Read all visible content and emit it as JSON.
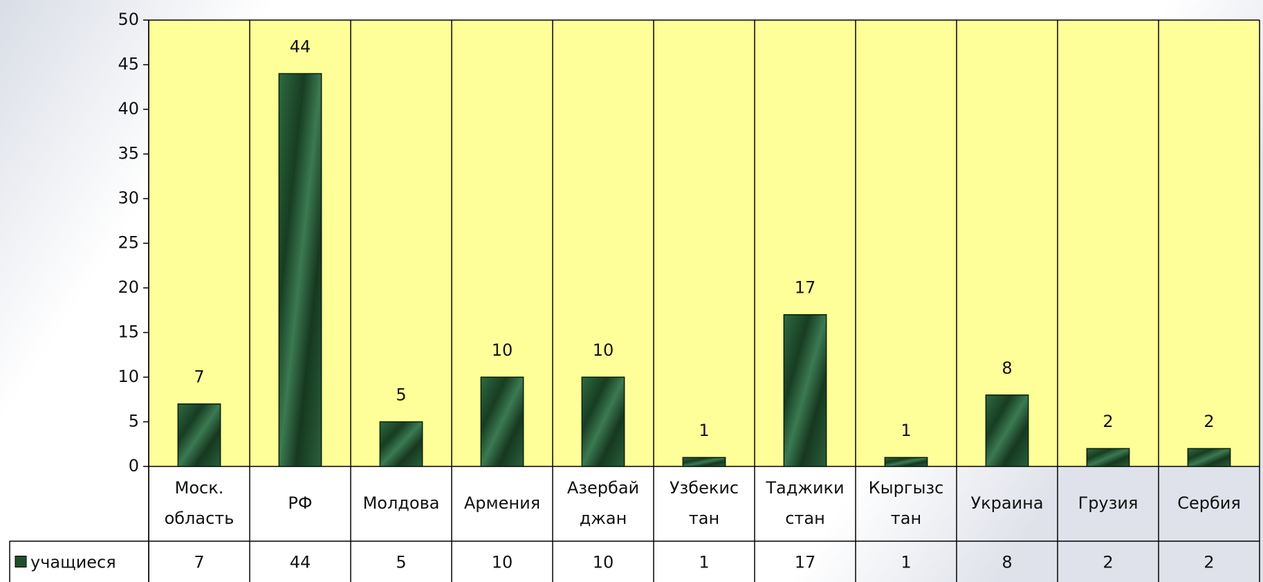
{
  "chart_data": {
    "type": "bar",
    "categories": [
      [
        "Моск.",
        "область"
      ],
      [
        "РФ"
      ],
      [
        "Молдова"
      ],
      [
        "Армения"
      ],
      [
        "Азербай",
        "джан"
      ],
      [
        "Узбекис",
        "тан"
      ],
      [
        "Таджики",
        "стан"
      ],
      [
        "Кыргызс",
        "тан"
      ],
      [
        "Украина"
      ],
      [
        "Грузия"
      ],
      [
        "Сербия"
      ]
    ],
    "series": [
      {
        "name": "учащиеся",
        "color": "#1f4f2c",
        "values": [
          7,
          44,
          5,
          10,
          10,
          1,
          17,
          1,
          8,
          2,
          2
        ]
      }
    ],
    "ylim": [
      0,
      50
    ],
    "yticks": [
      0,
      5,
      10,
      15,
      20,
      25,
      30,
      35,
      40,
      45,
      50
    ],
    "plot_background": "#ffff99",
    "data_table": true
  }
}
